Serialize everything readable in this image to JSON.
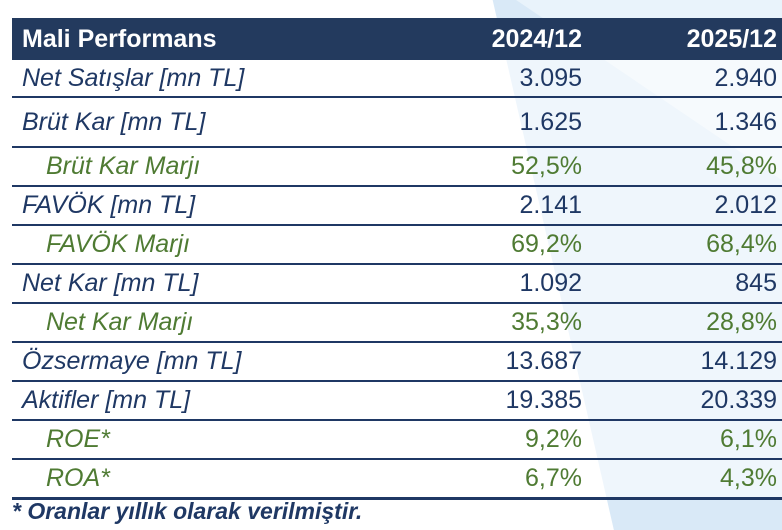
{
  "colors": {
    "navy_text": "#1F3864",
    "header_background": "#233A5E",
    "green_text": "#4F7B33",
    "light_blue_background": "#D9E9F7"
  },
  "table": {
    "title": "Mali Performans",
    "columns": [
      "2024/12",
      "2025/12"
    ],
    "rows": [
      {
        "label": "Net Satışlar [mn TL]",
        "values": [
          "3.095",
          "2.940"
        ],
        "type": "main"
      },
      {
        "label": "Brüt Kar [mn TL]",
        "values": [
          "1.625",
          "1.346"
        ],
        "type": "main"
      },
      {
        "label": "Brüt Kar Marjı",
        "values": [
          "52,5%",
          "45,8%"
        ],
        "type": "ratio"
      },
      {
        "label": "FAVÖK [mn TL]",
        "values": [
          "2.141",
          "2.012"
        ],
        "type": "main"
      },
      {
        "label": "FAVÖK Marjı",
        "values": [
          "69,2%",
          "68,4%"
        ],
        "type": "ratio"
      },
      {
        "label": "Net Kar [mn TL]",
        "values": [
          "1.092",
          "845"
        ],
        "type": "main"
      },
      {
        "label": "Net Kar Marjı",
        "values": [
          "35,3%",
          "28,8%"
        ],
        "type": "ratio"
      },
      {
        "label": "Özsermaye [mn TL]",
        "values": [
          "13.687",
          "14.129"
        ],
        "type": "main"
      },
      {
        "label": "Aktifler [mn TL]",
        "values": [
          "19.385",
          "20.339"
        ],
        "type": "main"
      },
      {
        "label": "ROE*",
        "values": [
          "9,2%",
          "6,1%"
        ],
        "type": "ratio"
      },
      {
        "label": "ROA*",
        "values": [
          "6,7%",
          "4,3%"
        ],
        "type": "ratio"
      }
    ],
    "footnote": "* Oranlar yıllık olarak verilmiştir."
  }
}
